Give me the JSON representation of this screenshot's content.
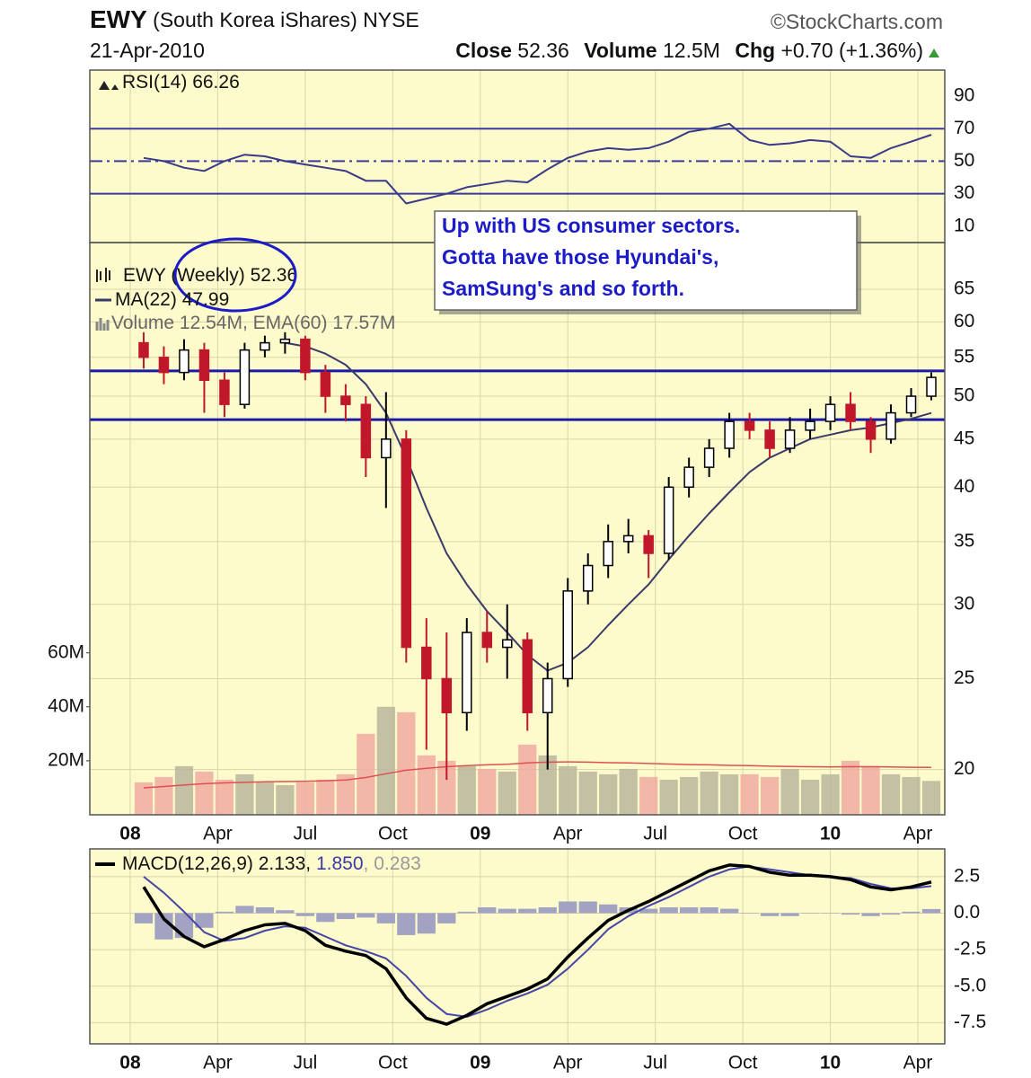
{
  "header": {
    "symbol": "EWY",
    "name": "(South Korea iShares)",
    "exchange": "NYSE",
    "source": "©StockCharts.com",
    "date": "21-Apr-2010",
    "close_label": "Close",
    "close": 52.36,
    "volume_label": "Volume",
    "volume": "12.5M",
    "chg_label": "Chg",
    "chg": "+0.70 (+1.36%)"
  },
  "chart_data": [
    {
      "type": "line",
      "background": "#fdfacb",
      "ylim": [
        0,
        106
      ],
      "yticks": [
        90,
        70,
        50,
        30,
        10
      ],
      "grid": false,
      "levels": [
        {
          "value": 70,
          "style": "solid"
        },
        {
          "value": 50,
          "style": "dashdot"
        },
        {
          "value": 30,
          "style": "solid"
        }
      ],
      "level_color": "#3a3a9a",
      "series": [
        {
          "name": "RSI(14)",
          "color": "#3a3a8a",
          "values": [
            52,
            50,
            46,
            44,
            50,
            54,
            53,
            50,
            48,
            46,
            44,
            38,
            38,
            24,
            27,
            30,
            34,
            36,
            38,
            37,
            45,
            52,
            56,
            58,
            57,
            58,
            62,
            68,
            70,
            73,
            63,
            60,
            61,
            63,
            62,
            53,
            52,
            58,
            62,
            66.26
          ]
        }
      ]
    },
    {
      "type": "candlestick",
      "background": "#fdfacb",
      "log": true,
      "grid": true,
      "x": [
        2,
        5,
        8,
        11,
        14,
        17,
        20,
        23,
        26,
        29,
        32,
        35,
        38,
        41,
        44,
        47,
        50,
        53,
        56,
        59,
        62,
        65,
        68,
        71,
        74,
        77,
        80,
        83,
        86,
        89,
        92,
        95,
        98,
        101,
        104,
        107,
        110,
        113,
        116,
        119
      ],
      "xlim": [
        -6,
        121
      ],
      "xticks": [
        {
          "value": 0,
          "label": "08"
        },
        {
          "value": 13,
          "label": "Apr"
        },
        {
          "value": 26,
          "label": "Jul"
        },
        {
          "value": 39,
          "label": "Oct"
        },
        {
          "value": 52,
          "label": "09"
        },
        {
          "value": 65,
          "label": "Apr"
        },
        {
          "value": 78,
          "label": "Jul"
        },
        {
          "value": 91,
          "label": "Oct"
        },
        {
          "value": 104,
          "label": "10"
        },
        {
          "value": 117,
          "label": "Apr"
        }
      ],
      "ylim": [
        17.9,
        72.9
      ],
      "yticks": [
        65,
        60,
        55,
        50,
        45,
        40,
        35,
        30,
        25,
        20
      ],
      "y2lim": [
        0,
        212
      ],
      "y2ticks": [
        {
          "value": 60,
          "label": "60M"
        },
        {
          "value": 40,
          "label": "40M"
        },
        {
          "value": 20,
          "label": "20M"
        }
      ],
      "hlines": [
        53.2,
        47.2
      ],
      "hline_color": "#1a1aaa",
      "annotation": [
        "Up with US consumer sectors.",
        "Gotta have those Hyundai's,",
        "SamSung's and so forth."
      ],
      "series": [
        {
          "name": "EWY",
          "period": "(Weekly)",
          "up_color": "#000000",
          "down_color": "#c0182a",
          "open": [
            57,
            55,
            53,
            56,
            52,
            49,
            56,
            57,
            57.5,
            53,
            50,
            49,
            43,
            45,
            27,
            25,
            23,
            28,
            27,
            27.5,
            23,
            25,
            31,
            33,
            35,
            35.5,
            34,
            40,
            42,
            44,
            47,
            46,
            44,
            46,
            47,
            49,
            47,
            45,
            48,
            50
          ],
          "high": [
            58.5,
            56.5,
            57.5,
            57,
            53,
            57,
            58,
            58.5,
            58,
            54,
            51.5,
            50,
            50.5,
            46,
            29,
            28,
            29,
            29.5,
            30,
            28,
            26,
            32,
            34,
            36.5,
            37,
            36,
            41,
            43,
            45,
            48,
            48,
            47,
            47.5,
            48.5,
            50,
            50.5,
            47.5,
            49,
            51,
            53
          ],
          "low": [
            53.5,
            51.5,
            52,
            48,
            47.5,
            48.5,
            55,
            55.5,
            52,
            48,
            47,
            41,
            38,
            26,
            21,
            19.5,
            22,
            26,
            25,
            22,
            20,
            24.5,
            30,
            32,
            34,
            32,
            33.5,
            39,
            41,
            43,
            45,
            43,
            43.5,
            45,
            46,
            46,
            43.5,
            44.5,
            47.5,
            49.5
          ],
          "close": [
            55,
            53,
            56,
            52,
            49,
            56,
            57,
            57.5,
            53,
            50,
            49,
            43,
            45,
            27,
            25,
            23,
            28,
            27,
            27.5,
            23,
            25,
            31,
            33,
            35,
            35.5,
            34,
            40,
            42,
            44,
            47,
            46,
            44,
            46,
            47,
            49,
            47,
            45,
            48,
            50,
            52.36
          ]
        },
        {
          "name": "MA(22)",
          "color": "#3a3a6a",
          "values": [
            null,
            null,
            null,
            null,
            null,
            null,
            null,
            57,
            56.5,
            55.5,
            54,
            51.5,
            48,
            43,
            38,
            34,
            31.5,
            29.5,
            28,
            26.5,
            25.5,
            26,
            27,
            28.5,
            30,
            31.5,
            33.5,
            35.5,
            37.5,
            39.5,
            41.5,
            43,
            44,
            45,
            45.5,
            46,
            46.3,
            46.8,
            47.3,
            47.99
          ]
        },
        {
          "name": "Volume",
          "axis": "y2",
          "up_color": "#b9b59c",
          "down_color": "#f1aaa2",
          "legend_label": "12.54M",
          "values": [
            12,
            14,
            18,
            16,
            13,
            15,
            12,
            11,
            12,
            13,
            15,
            30,
            40,
            38,
            22,
            20,
            18,
            17,
            16,
            26,
            22,
            18,
            16,
            15,
            17,
            14,
            13,
            14,
            16,
            15,
            15,
            14,
            17,
            13,
            15,
            20,
            18,
            15,
            14,
            12.54
          ]
        },
        {
          "name": "EMA(60)",
          "axis": "y2",
          "color": "#e05050",
          "legend_label": "17.57M",
          "values": [
            10,
            10.5,
            11,
            11.5,
            11.8,
            12,
            12.2,
            12.3,
            12.4,
            12.6,
            12.9,
            13.8,
            15.2,
            16.5,
            17.2,
            17.8,
            18.2,
            18.5,
            18.7,
            19.2,
            19.5,
            19.6,
            19.5,
            19.3,
            19.2,
            19,
            18.8,
            18.6,
            18.5,
            18.3,
            18.2,
            18,
            17.9,
            17.8,
            17.7,
            17.8,
            17.8,
            17.7,
            17.6,
            17.57
          ]
        }
      ]
    },
    {
      "type": "line",
      "background": "#fdfacb",
      "grid": true,
      "ylim": [
        -8.95,
        4.4
      ],
      "yticks": [
        2.5,
        {
          "value": 0,
          "label": "0.0"
        },
        -2.5,
        {
          "value": -5,
          "label": "-5.0"
        },
        -7.5
      ],
      "xlim": [
        -6,
        121
      ],
      "xticks": [
        {
          "value": 0,
          "label": "08"
        },
        {
          "value": 13,
          "label": "Apr"
        },
        {
          "value": 26,
          "label": "Jul"
        },
        {
          "value": 39,
          "label": "Oct"
        },
        {
          "value": 52,
          "label": "09"
        },
        {
          "value": 65,
          "label": "Apr"
        },
        {
          "value": 78,
          "label": "Jul"
        },
        {
          "value": 91,
          "label": "Oct"
        },
        {
          "value": 104,
          "label": "10"
        },
        {
          "value": 117,
          "label": "Apr"
        }
      ],
      "legend_values": [
        "2.133",
        "1.850",
        "0.283"
      ],
      "series": [
        {
          "kind": "bar",
          "color": "#a2a2c2",
          "values": [
            -0.7,
            -1.8,
            -1.7,
            -1,
            0.1,
            0.5,
            0.4,
            0.2,
            -0.2,
            -0.6,
            -0.4,
            -0.3,
            -0.7,
            -1.5,
            -1.4,
            -0.7,
            0.1,
            0.4,
            0.3,
            0.3,
            0.4,
            0.8,
            0.8,
            0.6,
            0.4,
            0.3,
            0.4,
            0.4,
            0.4,
            0.3,
            0,
            -0.2,
            -0.2,
            0,
            0,
            -0.1,
            -0.2,
            -0.1,
            0.1,
            0.283
          ]
        },
        {
          "kind": "line",
          "color": "#4545a8",
          "values": [
            2.5,
            1.4,
            0.1,
            -1.3,
            -1.9,
            -1.7,
            -1.2,
            -0.9,
            -1,
            -1.6,
            -2.2,
            -2.6,
            -3.1,
            -4.3,
            -5.8,
            -6.9,
            -7.1,
            -6.6,
            -6,
            -5.5,
            -4.9,
            -3.8,
            -2.5,
            -1.1,
            -0.2,
            0.5,
            1.1,
            1.8,
            2.5,
            3,
            3.2,
            3,
            2.8,
            2.6,
            2.5,
            2.4,
            2,
            1.7,
            1.7,
            1.85
          ]
        },
        {
          "kind": "line",
          "name": "MACD(12,26,9)",
          "color": "#000000",
          "values": [
            1.8,
            -0.4,
            -1.6,
            -2.3,
            -1.8,
            -1.2,
            -0.8,
            -0.7,
            -1.2,
            -2.2,
            -2.6,
            -2.9,
            -3.8,
            -5.8,
            -7.2,
            -7.6,
            -7,
            -6.2,
            -5.7,
            -5.2,
            -4.5,
            -3,
            -1.7,
            -0.5,
            0.2,
            0.8,
            1.5,
            2.2,
            2.9,
            3.3,
            3.2,
            2.8,
            2.6,
            2.6,
            2.5,
            2.3,
            1.8,
            1.6,
            1.8,
            2.133
          ]
        }
      ]
    }
  ]
}
